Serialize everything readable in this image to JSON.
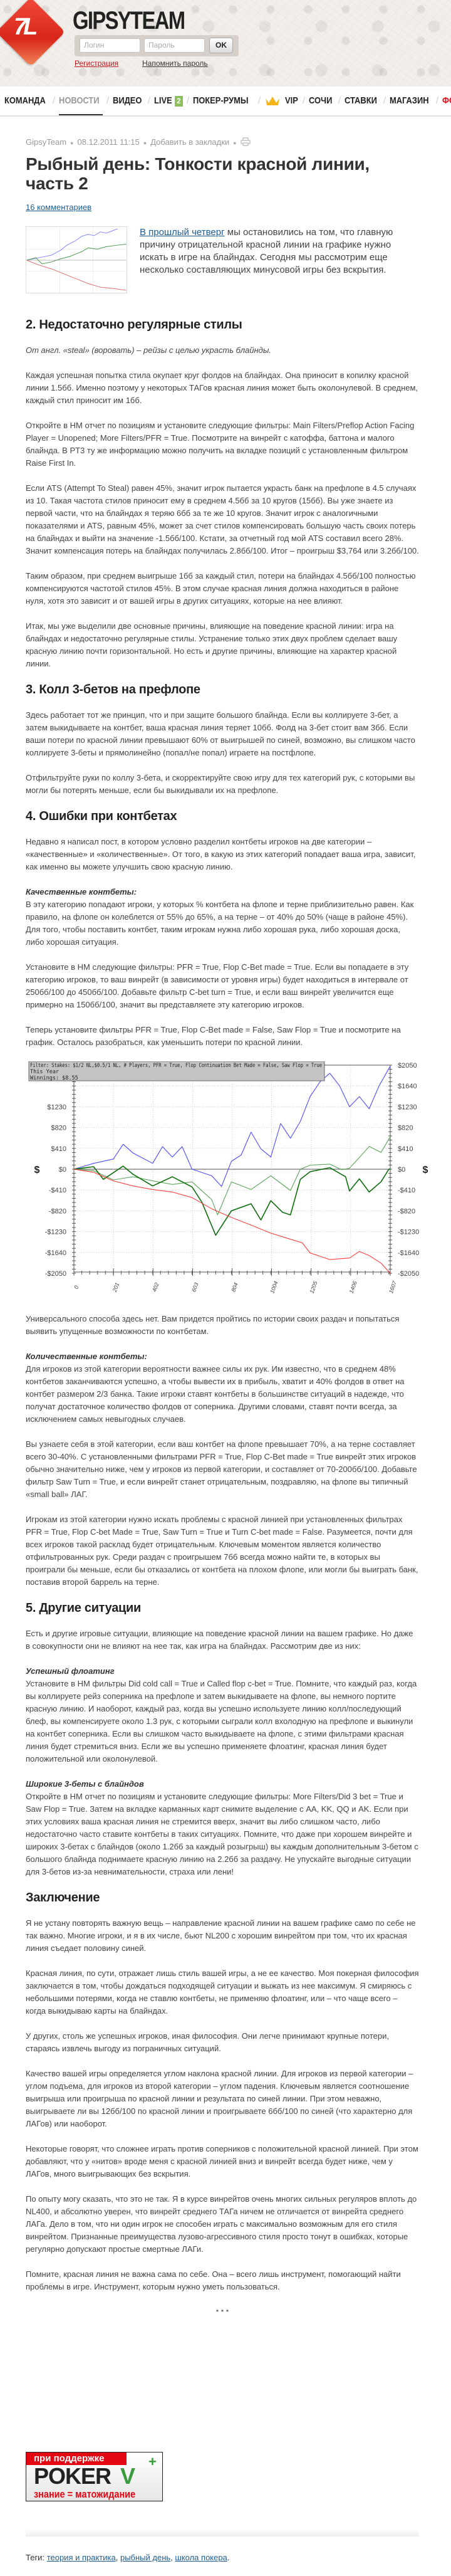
{
  "header": {
    "brand": "GIPSYTEAM",
    "logo_glyph": "7L",
    "login_placeholder": "Логин",
    "password_placeholder": "Пароль",
    "ok_label": "OK",
    "register_link": "Регистрация",
    "remind_link": "Напомнить пароль"
  },
  "nav": {
    "items": [
      "КОМАНДА",
      "НОВОСТИ",
      "ВИДЕО",
      "LIVE",
      "ПОКЕР-РУМЫ",
      "VIP",
      "СОЧИ",
      "СТАВКИ",
      "МАГАЗИН",
      "ФО"
    ],
    "live_badge": "2",
    "separator": "/",
    "active_color": "#999999",
    "last_color": "#e30613"
  },
  "meta": {
    "author": "GipsyTeam",
    "date": "08.12.2011 11:15",
    "bookmark": "Добавить в закладки",
    "print_icon": "printer-icon"
  },
  "article": {
    "title": "Рыбный день: Тонкости красной линии, часть 2",
    "comments": "16 комментариев",
    "intro_link": "В прошлый четверг",
    "intro_text": " мы остановились на том, что главную причину отрицательной красной линии на графике нужно искать в игре на блайндах. Сегодня мы рассмотрим еще несколько составляющих минусовой игры без вскрытия.",
    "blocks": [
      {
        "type": "h",
        "text": "2. Недостаточно регулярные стилы"
      },
      {
        "type": "it",
        "text": "От англ. «steal» (воровать) – рейзы с целью украсть блайнды."
      },
      {
        "type": "p",
        "text": "Каждая успешная попытка стила окупает круг фолдов на блайндах. Она приносит в копилку красной линии 1.5бб. Именно поэтому у некоторых ТАГов красная линия может быть околонулевой. В среднем, каждый стил приносит им 1бб."
      },
      {
        "type": "p",
        "text": "Откройте в HM отчет по позициям и установите следующие фильтры: Main Filters/Preflop Action Facing Player = Unopened; More Filters/PFR = True. Посмотрите на винрейт с катоффа, баттона и малого блайнда. В PT3 ту же информацию можно получить на вкладке позиций с установленным фильтром Raise First In."
      },
      {
        "type": "p",
        "text": "Если ATS (Attempt To Steal) равен 45%, значит игрок пытается украсть банк на префлопе в 4.5 случаях из 10. Такая частота стилов приносит ему в среднем 4.5бб за 10 кругов (15бб). Вы уже знаете из первой части, что на блайндах я теряю 6бб за те же 10 кругов. Значит игрок с аналогичными показателями и ATS, равным 45%, может за счет стилов компенсировать большую часть своих потерь на блайндах и выйти на значение -1.5бб/100. Кстати, за отчетный год мой ATS составил всего 28%. Значит компенсация потерь на блайндах получилась 2.8бб/100. Итог – проигрыш $3,764 или 3.2бб/100."
      },
      {
        "type": "p",
        "text": "Таким образом, при среднем выигрыше 1бб за каждый стил, потери на блайндах 4.5бб/100 полностью компенсируются частотой стилов 45%. В этом случае красная линия должна находиться в районе нуля, хотя это зависит и от вашей игры в других ситуациях, которые на нее влияют."
      },
      {
        "type": "p",
        "text": "Итак, мы уже выделили две основные причины, влияющие на поведение красной линии: игра на блайндах и недостаточно регулярные стилы. Устранение только этих двух проблем сделает вашу красную линию почти горизонтальной. Но есть и другие причины, влияющие на характер красной линии."
      },
      {
        "type": "h",
        "text": "3. Колл 3-бетов на префлопе"
      },
      {
        "type": "p",
        "text": "Здесь работает тот же принцип, что и при защите большого блайнда. Если вы коллируете 3-бет, а затем выкидываете на контбет, ваша красная линия теряет 10бб. Фолд на 3-бет стоит вам 3бб. Если ваши потери по красной линии превышают 60% от выигрышей по синей, возможно, вы слишком часто коллируете 3-беты и прямолинейно (попал/не попал) играете на постфлопе."
      },
      {
        "type": "p",
        "text": "Отфильтруйте руки по коллу 3-бета, и скорректируйте свою игру для тех категорий рук, с которыми вы могли бы потерять меньше, если бы выкидывали их на префлопе."
      },
      {
        "type": "h",
        "text": "4. Ошибки при контбетах"
      },
      {
        "type": "p",
        "text": "Недавно я написал пост, в котором условно разделил контбеты игроков на две категории – «качественные» и «количественные». От того, в какую из этих категорий попадает ваша игра, зависит, как именно вы можете улучшить свою красную линию."
      },
      {
        "type": "sub",
        "head": "Качественные контбеты:",
        "text": "В эту категорию попадают игроки, у которых % контбета на флопе и терне приблизительно равен. Как правило, на флопе он колеблется от 55% до 65%, а на терне – от 40% до 50% (чаще в районе 45%). Для того, чтобы поставить контбет, таким игрокам нужна либо хорошая рука, либо хорошая доска, либо хорошая ситуация."
      },
      {
        "type": "p",
        "text": "Установите в HM следующие фильтры: PFR = True, Flop C-Bet made = True. Если вы попадаете в эту категорию игроков, то ваш винрейт (в зависимости от уровня игры) будет находиться в интервале от 250бб/100 до 450бб/100. Добавьте фильтр C-bet turn = True, и если ваш винрейт увеличится еще примерно на 150бб/100, значит вы представляете эту категорию игроков."
      },
      {
        "type": "p",
        "text": "Теперь установите фильтры PFR = True, Flop C-Bet made = False, Saw Flop = True и посмотрите на график. Осталось разобраться, как уменьшить потери по красной линии."
      },
      {
        "type": "chart"
      },
      {
        "type": "p",
        "text": "Универсального способа здесь нет. Вам придется пройтись по истории своих раздач и попытаться выявить упущенные возможности по контбетам."
      },
      {
        "type": "sub",
        "head": "Количественные контбеты:",
        "text": "Для игроков из этой категории вероятности важнее силы их рук. Им известно, что в среднем 48% контбетов заканчиваются успешно, а чтобы вывести их в прибыль, хватит и 40% фолдов в ответ на контбет размером 2/3 банка. Такие игроки ставят контбеты в большинстве ситуаций в надежде, что получат достаточное количество фолдов от соперника. Другими словами, ставят почти всегда, за исключением самых невыгодных случаев."
      },
      {
        "type": "p",
        "text": "Вы узнаете себя в этой категории, если ваш контбет на флопе превышает 70%, а на терне составляет всего 30-40%. С установленными фильтрами PFR = True, Flop C-Bet made = True винрейт этих игроков обычно значительно ниже, чем у игроков из первой категории, и составляет от 70-200бб/100. Добавьте фильтр Saw Turn = True, и если винрейт станет отрицательным, поздравляю, на флопе вы типичный «small ball» ЛАГ."
      },
      {
        "type": "p",
        "text": "Игрокам из этой категории нужно искать проблемы с красной линией при установленных фильтрах PFR = True, Flop C-bet Made = True, Saw Turn = True и Turn C-bet made = False. Разумеется, почти для всех игроков такой расклад будет отрицательным. Ключевым моментом является количество отфильтрованных рук. Среди раздач с проигрышем 7бб всегда можно найти те, в которых вы проиграли бы меньше, если бы отказались от контбета на плохом флопе, или могли бы выиграть банк, поставив второй баррель на терне."
      },
      {
        "type": "h",
        "text": "5. Другие ситуации"
      },
      {
        "type": "p",
        "text": "Есть и другие игровые ситуации, влияющие на поведение красной линии на вашем графике. Но даже в совокупности они не влияют на нее так, как игра на блайндах. Рассмотрим две из них:"
      },
      {
        "type": "sub",
        "head": "Успешный флоатинг",
        "text": "Установите в HM фильтры Did cold call = True и Called flop c-bet = True. Помните, что каждый раз, когда вы коллируете рейз соперника на префлопе и затем выкидываете на флопе, вы немного портите красную линию. И наоборот, каждый раз, когда вы успешно используете линию колл/последующий блеф, вы компенсируете около 1.3 рук, с которыми сыграли колл вхолодную на префлопе и выкинули на контбет соперника. Если вы слишком часто выкидываете на флопе, с этими фильтрами красная линия будет стремиться вниз. Если же вы успешно применяете флоатинг, красная линия будет положительной или околонулевой."
      },
      {
        "type": "sub",
        "head": "Широкие 3-беты с блайндов",
        "text": "Откройте в HM отчет по позициям и установите следующие фильтры: More Filters/Did 3 bet = True и Saw Flop = True. Затем на вкладке карманных карт снимите выделение с AA, KK, QQ и AK. Если при этих условиях ваша красная линия не стремится вверх, значит вы либо слишком часто, либо недостаточно часто ставите контбеты в таких ситуациях. Помните, что даже при хорошем винрейте и широких 3-бетах с блайндов (около 1.2бб за каждый розыгрыш) вы каждым дополнительным 3-бетом с большого блайнда поднимаете красную линию на 2.2бб за раздачу. Не упускайте выгодные ситуации для 3-бетов из-за невнимательности, страха или лени!"
      },
      {
        "type": "h",
        "text": "Заключение"
      },
      {
        "type": "p",
        "text": "Я не устану повторять важную вещь – направление красной линии на вашем графике само по себе не так важно. Многие игроки, и я в их числе, бьют NL200 с хорошим винрейтом при том, что их красная линия съедает половину синей."
      },
      {
        "type": "p",
        "text": "Красная линия, по сути, отражает лишь стиль вашей игры, а не ее качество. Моя покерная философия заключается в том, чтобы дождаться подходящей ситуации и выжать из нее максимум. Я смиряюсь с небольшими потерями, когда не ставлю контбеты, не применяю флоатинг, или – что чаще всего – когда выкидываю карты на блайндах."
      },
      {
        "type": "p",
        "text": "У других, столь же успешных игроков, иная философия. Они легче принимают крупные потери, стараясь извлечь выгоду из пограничных ситуаций."
      },
      {
        "type": "p",
        "text": "Качество вашей игры определяется углом наклона красной линии. Для игроков из первой категории – углом подъема, для игроков из второй категории – углом падения. Ключевым является соотношение выигрыша или проигрыша по красной линии и результата по синей линии. При этом неважно, выигрываете ли вы 12бб/100 по красной линии и проигрываете 6бб/100 по синей (что характерно для ЛАГов) или наоборот."
      },
      {
        "type": "p",
        "text": "Некоторые говорят, что сложнее играть против соперников с положительной красной линией. При этом добавляют, что у «нитов» вроде меня с красной линией вниз и винрейт всегда будет ниже, чем у ЛАГов, много выигрывающих без вскрытия."
      },
      {
        "type": "p",
        "text": "По опыту могу сказать, что это не так. Я в курсе винрейтов очень многих сильных регуляров вплоть до NL400, и абсолютно уверен, что винрейт среднего ТАГа ничем не отличается от винрейта среднего ЛАГа. Дело в том, что ни один игрок не способен играть с максимально возможным для его стиля винрейтом. Признанные преимущества лузово-агрессивного стиля просто тонут в ошибках, которые регулярно допускают простые смертные ЛАГи."
      },
      {
        "type": "p",
        "text": "Помните, красная линия не важна сама по себе. Она – всего лишь инструмент, помогающий найти проблемы в игре. Инструмент, которым нужно уметь пользоваться."
      },
      {
        "type": "sep",
        "text": "* * *"
      }
    ]
  },
  "banner": {
    "top": "при поддержке",
    "brand": "POKER",
    "brand_v": "V",
    "plus": "+",
    "slogan": "знание = матожидание"
  },
  "tags": {
    "label": "Теги:",
    "items": [
      "теория и практика",
      "рыбный день",
      "школа покера"
    ]
  },
  "chart_data": {
    "type": "line",
    "title": "",
    "tooltip": [
      "Filter: Stakes: $1/2 NL,$0.5/1 NL, # Players, PFR = True, Flop Continuation Bet Made = False, Saw Flop = True",
      "This Year",
      "Winnings: $8.55"
    ],
    "xlabel": "",
    "ylabel": "$",
    "xlim": [
      0,
      1607
    ],
    "ylim": [
      -2050,
      2050
    ],
    "x_ticks": [
      0,
      201,
      402,
      603,
      804,
      1004,
      1205,
      1406,
      1607
    ],
    "y_ticks": [
      2050,
      1640,
      1230,
      820,
      410,
      0,
      -410,
      -820,
      -1230,
      -1640,
      -2050
    ],
    "grid": true,
    "series": [
      {
        "name": "blue",
        "color": "#4a4aff",
        "x": [
          0,
          100,
          200,
          250,
          300,
          400,
          450,
          500,
          550,
          600,
          700,
          750,
          800,
          850,
          900,
          950,
          1000,
          1050,
          1100,
          1150,
          1200,
          1250,
          1300,
          1350,
          1400,
          1450,
          1500,
          1550,
          1607
        ],
        "y": [
          0,
          115,
          200,
          490,
          320,
          115,
          445,
          240,
          445,
          0,
          -130,
          -340,
          155,
          280,
          730,
          400,
          240,
          900,
          610,
          940,
          1430,
          1720,
          1890,
          1640,
          1230,
          1430,
          1190,
          1640,
          2030
        ]
      },
      {
        "name": "light-green",
        "color": "#5aa55a",
        "x": [
          0,
          100,
          200,
          300,
          400,
          500,
          600,
          700,
          730,
          800,
          900,
          1000,
          1100,
          1150,
          1200,
          1300,
          1360,
          1400,
          1450,
          1500,
          1560,
          1607
        ],
        "y": [
          0,
          -30,
          -210,
          -150,
          -230,
          -300,
          -250,
          -600,
          -900,
          -250,
          -400,
          -130,
          -420,
          0,
          80,
          100,
          -10,
          20,
          230,
          450,
          330,
          640
        ]
      },
      {
        "name": "dark-green",
        "color": "#0b6b0b",
        "x": [
          0,
          100,
          150,
          250,
          300,
          400,
          500,
          600,
          650,
          720,
          800,
          900,
          950,
          1000,
          1060,
          1100,
          1150,
          1200,
          1300,
          1380,
          1400,
          1450,
          1500,
          1560,
          1600,
          1607
        ],
        "y": [
          0,
          50,
          -200,
          60,
          -100,
          -330,
          -150,
          -350,
          -650,
          -1300,
          -820,
          -680,
          -1000,
          -620,
          -850,
          -900,
          -200,
          -50,
          30,
          -150,
          -430,
          -190,
          -450,
          -250,
          0,
          8.55
        ]
      },
      {
        "name": "red",
        "color": "#ff3b3b",
        "x": [
          0,
          100,
          200,
          300,
          400,
          500,
          600,
          700,
          800,
          900,
          1000,
          1100,
          1160,
          1200,
          1300,
          1400,
          1450,
          1500,
          1560,
          1607
        ],
        "y": [
          0,
          -60,
          -230,
          -330,
          -400,
          -450,
          -560,
          -780,
          -950,
          -1100,
          -1260,
          -1380,
          -1450,
          -1650,
          -1780,
          -1750,
          -1620,
          -1700,
          -1850,
          -2050
        ]
      }
    ]
  }
}
